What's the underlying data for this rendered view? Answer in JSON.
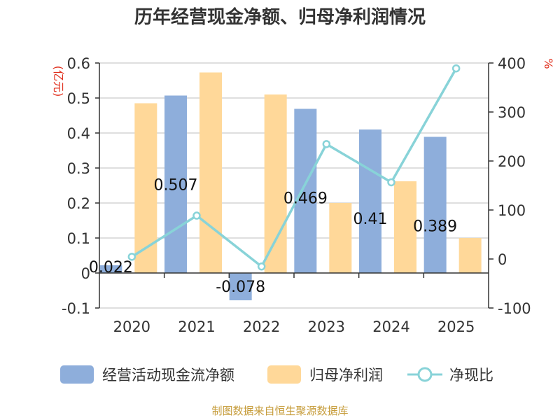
{
  "title": "历年经营现金净额、归母净利润情况",
  "source": "制图数据来自恒生聚源数据库",
  "colors": {
    "ocf": "#8eaedb",
    "profit": "#ffd899",
    "ratio": "#88d3d8",
    "unit": "#e0301e",
    "source": "#c69c3a",
    "axis": "#333333",
    "grid": "#cccccc"
  },
  "chart_data": {
    "type": "bar",
    "title": "历年经营现金净额、归母净利润情况",
    "categories": [
      "2020",
      "2021",
      "2022",
      "2023",
      "2024",
      "2025"
    ],
    "left_axis": {
      "unit": "(亿元)",
      "range": [
        -0.1,
        0.6
      ],
      "ticks": [
        0.6,
        0.5,
        0.4,
        0.3,
        0.2,
        0.1,
        0,
        -0.1
      ],
      "tick_labels": [
        "0.6",
        "0.5",
        "0.4",
        "0.3",
        "0.2",
        "0.1",
        "0",
        "-0.1"
      ]
    },
    "right_axis": {
      "unit": "%",
      "range": [
        -100,
        400
      ],
      "ticks": [
        400,
        300,
        200,
        100,
        0,
        -100
      ],
      "tick_labels": [
        "400",
        "300",
        "200",
        "100",
        "0",
        "-100"
      ]
    },
    "series": [
      {
        "name": "经营活动现金流净额",
        "type": "bar",
        "axis": "left",
        "values": [
          0.022,
          0.507,
          -0.078,
          0.469,
          0.41,
          0.389
        ],
        "labels": [
          "0.022",
          "0.507",
          "-0.078",
          "0.469",
          "0.41",
          "0.389"
        ]
      },
      {
        "name": "归母净利润",
        "type": "bar",
        "axis": "left",
        "values": [
          0.485,
          0.573,
          0.51,
          0.2,
          0.262,
          0.1
        ]
      },
      {
        "name": "净现比",
        "type": "line",
        "axis": "right",
        "values": [
          4.5,
          88.5,
          -15.3,
          234.5,
          156.5,
          389
        ]
      }
    ],
    "legend": [
      "经营活动现金流净额",
      "归母净利润",
      "净现比"
    ],
    "legend_position": "bottom"
  }
}
